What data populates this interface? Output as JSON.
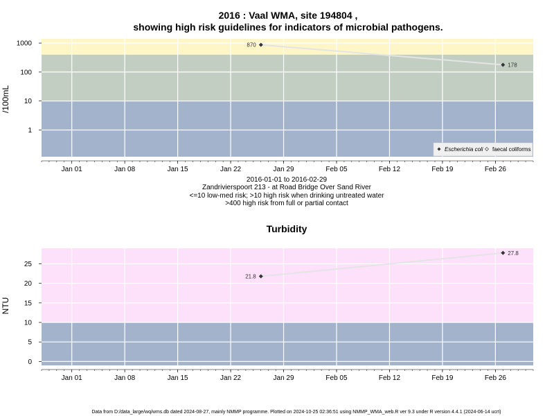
{
  "footer": "Data from D:/data_large/wq/wms.db dated 2024-08-27, mainly NMMP programme. Plotted on 2024-10-25 02:36:51 using NMMP_WMA_web.R ver 9.3 under R version 4.4.1 (2024-06-14 ucrt)",
  "colors": {
    "band_low": "#a3b3cb",
    "band_mid": "#c3cec3",
    "band_high": "#fff6c8",
    "band_turb_high": "#fde0fa",
    "grid": "#ffffff",
    "series_line": "#e4e4e4",
    "marker": "#333333",
    "legend_bg": "#f0f0f0"
  },
  "chart_data": [
    {
      "type": "line",
      "title": "2016 : Vaal WMA, site 194804 ,",
      "title2": "showing high risk guidelines for indicators of microbial pathogens.",
      "subtitle_lines": [
        "2016-01-01 to 2016-02-29",
        "Zandrivierspoort 213 - at Road Bridge Over Sand River",
        "<=10 low-med risk; >10 high risk when drinking untreated water",
        ">400 high risk from full or partial contact"
      ],
      "ylabel": "/100mL",
      "yscale": "log",
      "ylim": [
        0.12,
        1400
      ],
      "yticks": [
        1,
        10,
        100,
        1000
      ],
      "yticklabels": [
        "1",
        "10",
        "100",
        "1000"
      ],
      "xlim": [
        "2015-12-28",
        "2016-03-02"
      ],
      "xticklabels": [
        "Jan 01",
        "Jan 08",
        "Jan 15",
        "Jan 22",
        "Jan 29",
        "Feb 05",
        "Feb 12",
        "Feb 19",
        "Feb 26"
      ],
      "xticks": [
        "2016-01-01",
        "2016-01-08",
        "2016-01-15",
        "2016-01-22",
        "2016-01-29",
        "2016-02-05",
        "2016-02-12",
        "2016-02-19",
        "2016-02-26"
      ],
      "grid": true,
      "bands": [
        {
          "from": 0.12,
          "to": 10,
          "color": "band_low"
        },
        {
          "from": 10,
          "to": 400,
          "color": "band_mid"
        },
        {
          "from": 400,
          "to": 1400,
          "color": "band_high"
        }
      ],
      "series": [
        {
          "name": "Escherichia coli",
          "x": [
            "2016-01-26",
            "2016-02-27"
          ],
          "y": [
            870,
            178
          ],
          "labels": [
            "870",
            "178"
          ]
        }
      ],
      "legend": [
        "Escherichia coli",
        "faecal coliforms"
      ],
      "legend_position": "bottom-right"
    },
    {
      "type": "line",
      "title": "Turbidity",
      "ylabel": "NTU",
      "yscale": "linear",
      "ylim": [
        -1,
        29
      ],
      "yticks": [
        0,
        5,
        10,
        15,
        20,
        25
      ],
      "yticklabels": [
        "0",
        "5",
        "10",
        "15",
        "20",
        "25"
      ],
      "xlim": [
        "2015-12-28",
        "2016-03-02"
      ],
      "xticklabels": [
        "Jan 01",
        "Jan 08",
        "Jan 15",
        "Jan 22",
        "Jan 29",
        "Feb 05",
        "Feb 12",
        "Feb 19",
        "Feb 26"
      ],
      "xticks": [
        "2016-01-01",
        "2016-01-08",
        "2016-01-15",
        "2016-01-22",
        "2016-01-29",
        "2016-02-05",
        "2016-02-12",
        "2016-02-19",
        "2016-02-26"
      ],
      "grid": true,
      "bands": [
        {
          "from": -1,
          "to": 10,
          "color": "band_low"
        },
        {
          "from": 10,
          "to": 29,
          "color": "band_turb_high"
        }
      ],
      "series": [
        {
          "x": [
            "2016-01-26",
            "2016-02-27"
          ],
          "y": [
            21.8,
            27.8
          ],
          "labels": [
            "21.8",
            "27.8"
          ]
        }
      ]
    }
  ]
}
